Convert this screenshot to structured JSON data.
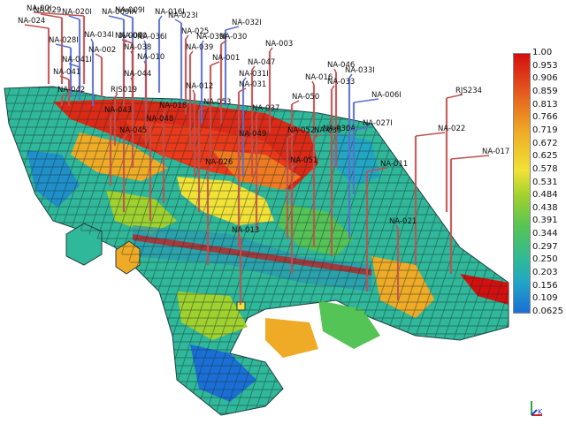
{
  "viewer": {
    "colorbar": {
      "ticks": [
        "1.00",
        "0.953",
        "0.906",
        "0.859",
        "0.813",
        "0.766",
        "0.719",
        "0.672",
        "0.625",
        "0.578",
        "0.531",
        "0.484",
        "0.438",
        "0.391",
        "0.344",
        "0.297",
        "0.250",
        "0.203",
        "0.156",
        "0.109",
        "0.0625"
      ],
      "colors": [
        "#d40f0f",
        "#ea3a1a",
        "#ef7a22",
        "#efab26",
        "#f1e236",
        "#9fd12f",
        "#54c456",
        "#2fb89a",
        "#22a6c4",
        "#1a6fd6"
      ]
    },
    "wells": [
      {
        "label": "NA-00I",
        "color": "#c05050"
      },
      {
        "label": "NA-024",
        "color": "#c05050"
      },
      {
        "label": "NA-029",
        "color": "#c05050"
      },
      {
        "label": "NA-020I",
        "color": "#5a6fd0"
      },
      {
        "label": "NA-009I",
        "color": "#5a6fd0"
      },
      {
        "label": "NA-009IA",
        "color": "#5a6fd0"
      },
      {
        "label": "NA-016I",
        "color": "#5a6fd0"
      },
      {
        "label": "NA-023I",
        "color": "#5a6fd0"
      },
      {
        "label": "NA-032I",
        "color": "#5a6fd0"
      },
      {
        "label": "NA-028I",
        "color": "#5a6fd0"
      },
      {
        "label": "NA-034I",
        "color": "#5a6fd0"
      },
      {
        "label": "NA-041I",
        "color": "#5a6fd0"
      },
      {
        "label": "NA-041",
        "color": "#c05050"
      },
      {
        "label": "NA-042",
        "color": "#c05050"
      },
      {
        "label": "NA-002",
        "color": "#c05050"
      },
      {
        "label": "NA-040",
        "color": "#c05050"
      },
      {
        "label": "NA-007",
        "color": "#c05050"
      },
      {
        "label": "NA-036I",
        "color": "#5a6fd0"
      },
      {
        "label": "NA-025",
        "color": "#c05050"
      },
      {
        "label": "NA-039I",
        "color": "#5a6fd0"
      },
      {
        "label": "NA-030",
        "color": "#c05050"
      },
      {
        "label": "NA-003",
        "color": "#c05050"
      },
      {
        "label": "NA-038",
        "color": "#c05050"
      },
      {
        "label": "NA-039",
        "color": "#c05050"
      },
      {
        "label": "NA-010",
        "color": "#c05050"
      },
      {
        "label": "NA-001",
        "color": "#c05050"
      },
      {
        "label": "NA-047",
        "color": "#c05050"
      },
      {
        "label": "NA-044",
        "color": "#c05050"
      },
      {
        "label": "NA-046",
        "color": "#c05050"
      },
      {
        "label": "NA-033I",
        "color": "#5a6fd0"
      },
      {
        "label": "NA-031I",
        "color": "#5a6fd0"
      },
      {
        "label": "NA-016",
        "color": "#c05050"
      },
      {
        "label": "NA-033",
        "color": "#c05050"
      },
      {
        "label": "RJS019",
        "color": "#c05050"
      },
      {
        "label": "NA-012",
        "color": "#c05050"
      },
      {
        "label": "NA-031",
        "color": "#c05050"
      },
      {
        "label": "NA-006I",
        "color": "#5a6fd0"
      },
      {
        "label": "RJS234",
        "color": "#c05050"
      },
      {
        "label": "NA-043",
        "color": "#c05050"
      },
      {
        "label": "NA-018",
        "color": "#c05050"
      },
      {
        "label": "NA-053",
        "color": "#c05050"
      },
      {
        "label": "NA-050",
        "color": "#c05050"
      },
      {
        "label": "NA-037",
        "color": "#c05050"
      },
      {
        "label": "NA-048",
        "color": "#c05050"
      },
      {
        "label": "NA-045",
        "color": "#c05050"
      },
      {
        "label": "NA-049",
        "color": "#c05050"
      },
      {
        "label": "NA-052",
        "color": "#c05050"
      },
      {
        "label": "NA-035",
        "color": "#c05050"
      },
      {
        "label": "NA-030A",
        "color": "#c05050"
      },
      {
        "label": "NA-027I",
        "color": "#5a6fd0"
      },
      {
        "label": "NA-022",
        "color": "#c05050"
      },
      {
        "label": "NA-017",
        "color": "#c05050"
      },
      {
        "label": "NA-026",
        "color": "#c05050"
      },
      {
        "label": "NA-051",
        "color": "#c05050"
      },
      {
        "label": "NA-011",
        "color": "#c05050"
      },
      {
        "label": "NA-021",
        "color": "#c05050"
      },
      {
        "label": "NA-013",
        "color": "#c05050"
      }
    ],
    "axis_triad": {
      "label": "K"
    }
  }
}
